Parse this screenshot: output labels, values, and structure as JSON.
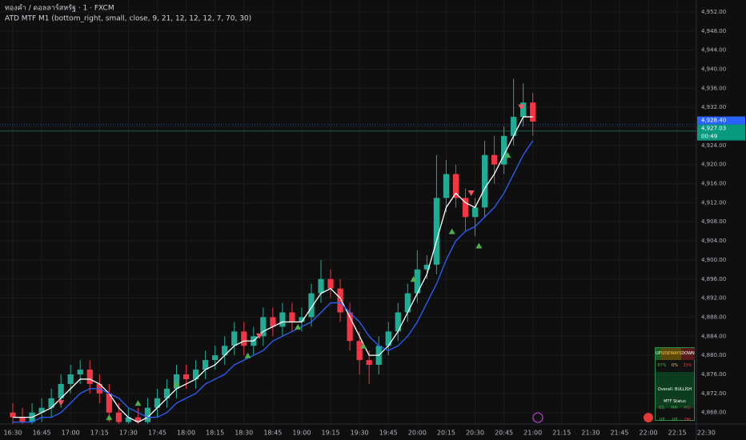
{
  "chart_data": {
    "type": "candlestick",
    "title": "ทองคำ / ดอลลาร์สหรัฐ · 1 · FXCM",
    "subtitle": "ATD MTF M1 (bottom_right, small, close, 9, 21, 12, 12, 12, 7, 70, 30)",
    "x": [
      990,
      995,
      1000,
      1005,
      1010,
      1015,
      1020,
      1025,
      1030,
      1035,
      1040,
      1045,
      1050,
      1055,
      1060,
      1065,
      1070,
      1075,
      1080,
      1085,
      1090,
      1095,
      1100,
      1105,
      1110,
      1115,
      1120,
      1125,
      1130,
      1135,
      1140,
      1145,
      1150,
      1155,
      1160,
      1165,
      1170,
      1175,
      1180,
      1185,
      1190,
      1195,
      1200,
      1205,
      1210,
      1215,
      1220,
      1225,
      1230,
      1235,
      1240,
      1245,
      1250,
      1255,
      1260
    ],
    "open": [
      4868,
      4867,
      4866,
      4868,
      4869,
      4871,
      4874,
      4876,
      4877,
      4874,
      4872,
      4868,
      4866,
      4867,
      4866,
      4869,
      4871,
      4873,
      4876,
      4875,
      4877,
      4879,
      4880,
      4882,
      4885,
      4882,
      4884,
      4888,
      4886,
      4889,
      4887,
      4888,
      4893,
      4896,
      4894,
      4889,
      4883,
      4879,
      4878,
      4882,
      4885,
      4889,
      4893,
      4898,
      4899,
      4913,
      4918,
      4913,
      4909,
      4911,
      4922,
      4920,
      4926,
      4930,
      4933
    ],
    "high": [
      4870,
      4869,
      4870,
      4871,
      4873,
      4876,
      4878,
      4879,
      4879,
      4876,
      4874,
      4870,
      4869,
      4869,
      4871,
      4873,
      4875,
      4878,
      4878,
      4879,
      4881,
      4882,
      4884,
      4887,
      4887,
      4886,
      4890,
      4890,
      4891,
      4891,
      4890,
      4895,
      4900,
      4898,
      4896,
      4891,
      4885,
      4881,
      4884,
      4887,
      4891,
      4895,
      4902,
      4901,
      4922,
      4921,
      4920,
      4915,
      4913,
      4925,
      4926,
      4928,
      4938,
      4937,
      4935
    ],
    "low": [
      4865,
      4864,
      4864,
      4866,
      4867,
      4869,
      4872,
      4874,
      4872,
      4870,
      4866,
      4864,
      4864,
      4864,
      4864,
      4867,
      4869,
      4871,
      4873,
      4873,
      4875,
      4877,
      4878,
      4880,
      4880,
      4880,
      4882,
      4884,
      4884,
      4885,
      4885,
      4886,
      4891,
      4892,
      4887,
      4881,
      4876,
      4874,
      4876,
      4880,
      4883,
      4887,
      4891,
      4896,
      4897,
      4910,
      4911,
      4906,
      4905,
      4909,
      4916,
      4918,
      4924,
      4928,
      4926
    ],
    "close": [
      4867,
      4866,
      4868,
      4869,
      4871,
      4874,
      4876,
      4877,
      4874,
      4872,
      4868,
      4866,
      4867,
      4866,
      4869,
      4871,
      4873,
      4876,
      4875,
      4877,
      4879,
      4880,
      4882,
      4885,
      4882,
      4884,
      4888,
      4886,
      4889,
      4887,
      4888,
      4893,
      4896,
      4894,
      4889,
      4883,
      4879,
      4878,
      4882,
      4885,
      4889,
      4893,
      4898,
      4899,
      4913,
      4918,
      4913,
      4909,
      4911,
      4922,
      4920,
      4926,
      4930,
      4933,
      4929
    ],
    "up_color": "#22ab94",
    "down_color": "#f23645",
    "series": [
      {
        "color": "#ffffff",
        "values": [
          4867,
          4867,
          4867,
          4868,
          4869,
          4871,
          4873,
          4875,
          4875,
          4874,
          4872,
          4869,
          4867,
          4866,
          4867,
          4869,
          4871,
          4873,
          4874,
          4875,
          4877,
          4878,
          4880,
          4882,
          4883,
          4883,
          4885,
          4886,
          4887,
          4887,
          4887,
          4890,
          4893,
          4894,
          4892,
          4888,
          4884,
          4880,
          4880,
          4882,
          4885,
          4889,
          4893,
          4897,
          4904,
          4911,
          4914,
          4912,
          4911,
          4915,
          4918,
          4922,
          4926,
          4930,
          4930
        ]
      },
      {
        "color": "#2962ff",
        "values": [
          4866,
          4866,
          4866,
          4867,
          4867,
          4868,
          4870,
          4872,
          4873,
          4873,
          4872,
          4871,
          4869,
          4868,
          4867,
          4867,
          4868,
          4870,
          4871,
          4872,
          4874,
          4875,
          4876,
          4878,
          4879,
          4880,
          4881,
          4883,
          4884,
          4885,
          4886,
          4887,
          4889,
          4891,
          4891,
          4889,
          4887,
          4884,
          4882,
          4881,
          4882,
          4884,
          4887,
          4891,
          4895,
          4900,
          4904,
          4906,
          4907,
          4909,
          4911,
          4914,
          4918,
          4922,
          4925
        ]
      }
    ],
    "signals_up": {
      "color": "#4caf50",
      "x": [
        1040,
        1055,
        1075,
        1112,
        1138,
        1172,
        1198,
        1218,
        1232,
        1247
      ],
      "y": [
        4867,
        4870,
        4874,
        4880,
        4886,
        4882,
        4896,
        4906,
        4903,
        4922
      ]
    },
    "signals_down": {
      "color": "#f7525f",
      "x": [
        1015,
        1118,
        1228,
        1254
      ],
      "y": [
        4870,
        4884,
        4914,
        4932
      ]
    },
    "last_price": {
      "value": 4928.4,
      "label": "4,928.40"
    },
    "prev_price": {
      "value": 4927.03,
      "label": "4,927.03"
    },
    "countdown": "00:49",
    "xlim": [
      983.35,
      1344.9
    ],
    "ylim": [
      4865.6,
      4954.5
    ],
    "xticks": [
      {
        "value": 990,
        "label": "16:30"
      },
      {
        "value": 1005,
        "label": "16:45"
      },
      {
        "value": 1020,
        "label": "17:00"
      },
      {
        "value": 1035,
        "label": "17:15"
      },
      {
        "value": 1050,
        "label": "17:30"
      },
      {
        "value": 1065,
        "label": "17:45"
      },
      {
        "value": 1080,
        "label": "18:00"
      },
      {
        "value": 1095,
        "label": "18:15"
      },
      {
        "value": 1110,
        "label": "18:30"
      },
      {
        "value": 1125,
        "label": "18:45"
      },
      {
        "value": 1140,
        "label": "19:00"
      },
      {
        "value": 1155,
        "label": "19:15"
      },
      {
        "value": 1170,
        "label": "19:30"
      },
      {
        "value": 1185,
        "label": "19:45"
      },
      {
        "value": 1200,
        "label": "20:00"
      },
      {
        "value": 1215,
        "label": "20:15"
      },
      {
        "value": 1230,
        "label": "20:30"
      },
      {
        "value": 1245,
        "label": "20:45"
      },
      {
        "value": 1260,
        "label": "21:00"
      },
      {
        "value": 1275,
        "label": "21:15"
      },
      {
        "value": 1290,
        "label": "21:30"
      },
      {
        "value": 1305,
        "label": "21:45"
      },
      {
        "value": 1320,
        "label": "22:00"
      },
      {
        "value": 1335,
        "label": "22:15"
      },
      {
        "value": 1350,
        "label": "22:30"
      }
    ],
    "yticks": [
      {
        "value": 4868,
        "label": "4,868.00"
      },
      {
        "value": 4872,
        "label": "4,872.00"
      },
      {
        "value": 4876,
        "label": "4,876.00"
      },
      {
        "value": 4880,
        "label": "4,880.00"
      },
      {
        "value": 4884,
        "label": "4,884.00"
      },
      {
        "value": 4888,
        "label": "4,888.00"
      },
      {
        "value": 4892,
        "label": "4,892.00"
      },
      {
        "value": 4896,
        "label": "4,896.00"
      },
      {
        "value": 4900,
        "label": "4,900.00"
      },
      {
        "value": 4904,
        "label": "4,904.00"
      },
      {
        "value": 4908,
        "label": "4,908.00"
      },
      {
        "value": 4912,
        "label": "4,912.00"
      },
      {
        "value": 4916,
        "label": "4,916.00"
      },
      {
        "value": 4920,
        "label": "4,920.00"
      },
      {
        "value": 4924,
        "label": "4,924.00"
      },
      {
        "value": 4928,
        "label": "4,928.00"
      },
      {
        "value": 4932,
        "label": "4,932.00"
      },
      {
        "value": 4936,
        "label": "4,936.00"
      },
      {
        "value": 4940,
        "label": "4,940.00"
      },
      {
        "value": 4944,
        "label": "4,944.00"
      },
      {
        "value": 4948,
        "label": "4,948.00"
      },
      {
        "value": 4952,
        "label": "4,952.00"
      }
    ],
    "grid": true
  },
  "mtf_table": {
    "header": [
      "UP",
      "SIDEWAYS",
      "DOWN"
    ],
    "percent": [
      "67%",
      "0%",
      "33%"
    ],
    "overall": "Overall: BULLISH",
    "status": "MTF Status",
    "frames": [
      "D1: UP",
      "H4: UP",
      "H1: DN"
    ]
  }
}
